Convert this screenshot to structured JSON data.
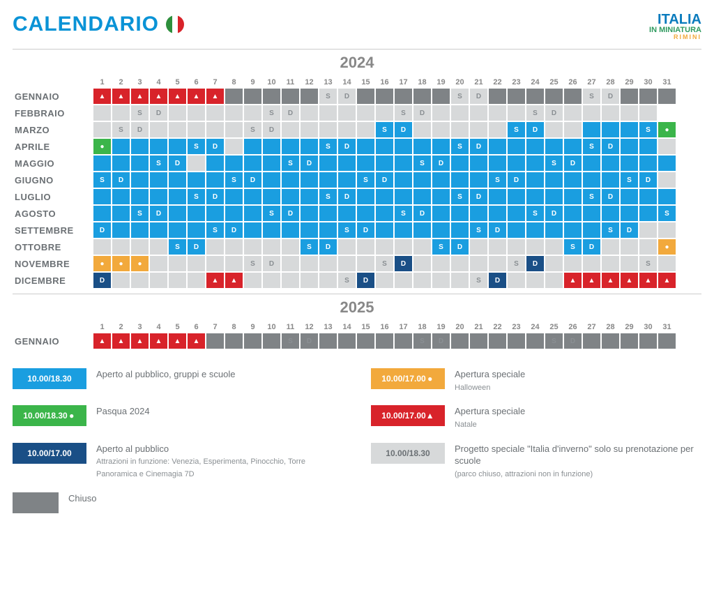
{
  "title": "CALENDARIO",
  "flag_colors": [
    "#2d8f3c",
    "#ffffff",
    "#d8232a"
  ],
  "logo": {
    "line1": "ITALIA",
    "line2": "IN MINIATURA",
    "line3": "RIMINI",
    "c1": "#0a7bbd",
    "c2": "#2f9a5f",
    "c3": "#f2a93c"
  },
  "title_color": "#0a93d6",
  "colors": {
    "open": "#1a9ee0",
    "dark": "#1a4f86",
    "closed": "#7f8386",
    "school": "#d7d9da",
    "natale": "#d8232a",
    "pasqua": "#3bb54a",
    "halloween": "#f2a93c",
    "text": "#6b7074",
    "white": "#ffffff"
  },
  "icons": {
    "tree": "▲",
    "egg": "●",
    "pumpkin": "●"
  },
  "years": [
    {
      "label": "2024",
      "months": [
        {
          "name": "GENNAIO",
          "d": [
            "nT",
            "nT",
            "nT",
            "nT",
            "nT",
            "nT",
            "nT",
            "c",
            "c",
            "c",
            "c",
            "c",
            "sS",
            "sD",
            "c",
            "c",
            "c",
            "c",
            "c",
            "sS",
            "sD",
            "c",
            "c",
            "c",
            "c",
            "c",
            "sS",
            "sD",
            "c",
            "c",
            "c"
          ]
        },
        {
          "name": "FEBBRAIO",
          "d": [
            "",
            "",
            "sS",
            "sD",
            "",
            "",
            "",
            "",
            "",
            "sS",
            "sD",
            "",
            "",
            "",
            "",
            "",
            "sS",
            "sD",
            "",
            "",
            "",
            "",
            "",
            "sS",
            "sD",
            "",
            "",
            "",
            "",
            ""
          ]
        },
        {
          "name": "MARZO",
          "d": [
            "",
            "sS",
            "sD",
            "",
            "",
            "",
            "",
            "",
            "sS",
            "sD",
            "",
            "",
            "",
            "",
            "",
            "oS",
            "oD",
            "",
            "",
            "",
            "",
            "",
            "oS",
            "oD",
            "",
            "",
            "o",
            "o",
            "o",
            "oS",
            "pE"
          ]
        },
        {
          "name": "APRILE",
          "d": [
            "pE",
            "o",
            "o",
            "o",
            "o",
            "oS",
            "oD",
            "",
            "o",
            "o",
            "o",
            "o",
            "oS",
            "oD",
            "o",
            "o",
            "o",
            "o",
            "o",
            "oS",
            "oD",
            "o",
            "o",
            "o",
            "o",
            "o",
            "oS",
            "oD",
            "o",
            "o",
            ""
          ]
        },
        {
          "name": "MAGGIO",
          "d": [
            "o",
            "o",
            "o",
            "oS",
            "oD",
            "",
            "o",
            "o",
            "o",
            "o",
            "oS",
            "oD",
            "o",
            "o",
            "o",
            "o",
            "o",
            "oS",
            "oD",
            "o",
            "o",
            "o",
            "o",
            "o",
            "oS",
            "oD",
            "o",
            "o",
            "o",
            "o",
            "o"
          ]
        },
        {
          "name": "GIUGNO",
          "d": [
            "oS",
            "oD",
            "o",
            "o",
            "o",
            "o",
            "o",
            "oS",
            "oD",
            "o",
            "o",
            "o",
            "o",
            "o",
            "oS",
            "oD",
            "o",
            "o",
            "o",
            "o",
            "o",
            "oS",
            "oD",
            "o",
            "o",
            "o",
            "o",
            "o",
            "oS",
            "oD",
            ""
          ]
        },
        {
          "name": "LUGLIO",
          "d": [
            "o",
            "o",
            "o",
            "o",
            "o",
            "oS",
            "oD",
            "o",
            "o",
            "o",
            "o",
            "o",
            "oS",
            "oD",
            "o",
            "o",
            "o",
            "o",
            "o",
            "oS",
            "oD",
            "o",
            "o",
            "o",
            "o",
            "o",
            "oS",
            "oD",
            "o",
            "o",
            "o"
          ]
        },
        {
          "name": "AGOSTO",
          "d": [
            "o",
            "o",
            "oS",
            "oD",
            "o",
            "o",
            "o",
            "o",
            "o",
            "oS",
            "oD",
            "o",
            "o",
            "o",
            "o",
            "o",
            "oS",
            "oD",
            "o",
            "o",
            "o",
            "o",
            "o",
            "oS",
            "oD",
            "o",
            "o",
            "o",
            "o",
            "o",
            "oS"
          ]
        },
        {
          "name": "SETTEMBRE",
          "d": [
            "oD",
            "o",
            "o",
            "o",
            "o",
            "o",
            "oS",
            "oD",
            "o",
            "o",
            "o",
            "o",
            "o",
            "oS",
            "oD",
            "o",
            "o",
            "o",
            "o",
            "o",
            "oS",
            "oD",
            "o",
            "o",
            "o",
            "o",
            "o",
            "oS",
            "oD",
            "",
            ""
          ]
        },
        {
          "name": "OTTOBRE",
          "d": [
            "",
            "",
            "",
            "",
            "oS",
            "oD",
            "",
            "",
            "",
            "",
            "",
            "oS",
            "oD",
            "",
            "",
            "",
            "",
            "",
            "oS",
            "oD",
            "",
            "",
            "",
            "",
            "",
            "oS",
            "oD",
            "",
            "",
            "",
            "hP"
          ]
        },
        {
          "name": "NOVEMBRE",
          "d": [
            "hP",
            "hP",
            "hP",
            "",
            "",
            "",
            "",
            "",
            "sS",
            "sD",
            "",
            "",
            "",
            "",
            "",
            "sS",
            "dD",
            "",
            "",
            "",
            "",
            "",
            "sS",
            "dD",
            "",
            "",
            "",
            "",
            "",
            "sS",
            ""
          ]
        },
        {
          "name": "DICEMBRE",
          "d": [
            "dD",
            "",
            "",
            "",
            "",
            "",
            "nT",
            "nT",
            "",
            "",
            "",
            "",
            "",
            "sS",
            "dD",
            "",
            "",
            "",
            "",
            "",
            "sS",
            "dD",
            "",
            "",
            "",
            "nT",
            "nT",
            "nT",
            "nT",
            "nT",
            "nT"
          ]
        }
      ]
    },
    {
      "label": "2025",
      "months": [
        {
          "name": "GENNAIO",
          "d": [
            "nT",
            "nT",
            "nT",
            "nT",
            "nT",
            "nT",
            "c",
            "c",
            "c",
            "c",
            "cS",
            "cD",
            "c",
            "c",
            "c",
            "c",
            "c",
            "cS",
            "cD",
            "c",
            "c",
            "c",
            "c",
            "c",
            "cS",
            "cD",
            "c",
            "c",
            "c",
            "c",
            "c"
          ]
        }
      ]
    }
  ],
  "legend": [
    {
      "chip": "10.00/18.30",
      "bg": "open",
      "icon": "",
      "title": "Aperto al pubblico, gruppi e scuole",
      "sub": ""
    },
    {
      "chip": "10.00/17.00",
      "bg": "halloween",
      "icon": "pumpkin",
      "title": "Apertura speciale",
      "sub": "Halloween"
    },
    {
      "chip": "10.00/18.30",
      "bg": "pasqua",
      "icon": "egg",
      "title": "Pasqua 2024",
      "sub": ""
    },
    {
      "chip": "10.00/17.00",
      "bg": "natale",
      "icon": "tree",
      "title": "Apertura speciale",
      "sub": "Natale"
    },
    {
      "chip": "10.00/17.00",
      "bg": "dark",
      "icon": "",
      "title": "Aperto al pubblico",
      "sub": "Attrazioni in funzione: Venezia, Esperimenta, Pinocchio, Torre Panoramica e Cinemagia 7D"
    },
    {
      "chip": "10.00/18.30",
      "bg": "school",
      "icon": "",
      "darktext": true,
      "title": "Progetto speciale \"Italia d'inverno\" solo su prenotazione per scuole",
      "sub": "(parco chiuso, attrazioni non in funzione)"
    },
    {
      "chip": "",
      "bg": "closed",
      "icon": "",
      "sw": true,
      "title": "Chiuso",
      "sub": ""
    }
  ],
  "legend_chiuso_pos": "right"
}
